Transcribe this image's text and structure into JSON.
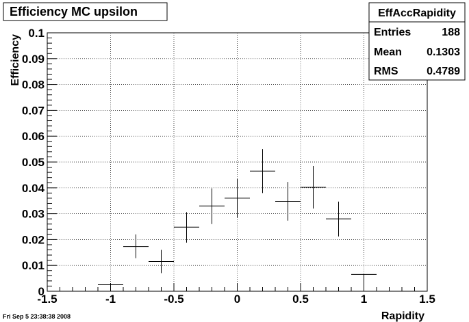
{
  "title_box": {
    "title": "Efficiency MC upsilon"
  },
  "stats_box": {
    "name": "EffAccRapidity",
    "rows": [
      {
        "label": "Entries",
        "value": "188"
      },
      {
        "label": "Mean",
        "value": "0.1303"
      },
      {
        "label": "RMS",
        "value": "0.4789"
      }
    ]
  },
  "footer": {
    "timestamp": "Fri Sep  5 23:38:38 2008"
  },
  "chart_data": {
    "type": "scatter",
    "title": "Efficiency MC upsilon",
    "xlabel": "Rapidity",
    "ylabel": "Efficiency",
    "xlim": [
      -1.5,
      1.5
    ],
    "ylim": [
      0,
      0.1
    ],
    "x_ticks": [
      -1.5,
      -1,
      -0.5,
      0,
      0.5,
      1,
      1.5
    ],
    "x_tick_labels": [
      "-1.5",
      "-1",
      "-0.5",
      "0",
      "0.5",
      "1",
      "1.5"
    ],
    "y_ticks": [
      0,
      0.01,
      0.02,
      0.03,
      0.04,
      0.05,
      0.06,
      0.07,
      0.08,
      0.09,
      0.1
    ],
    "y_tick_labels": [
      "0",
      "0.01",
      "0.02",
      "0.03",
      "0.04",
      "0.05",
      "0.06",
      "0.07",
      "0.08",
      "0.09",
      "0.1"
    ],
    "grid": true,
    "series": [
      {
        "x": [
          -1.0,
          -0.8,
          -0.6,
          -0.4,
          -0.2,
          0.0,
          0.2,
          0.4,
          0.6,
          0.8,
          1.0
        ],
        "y": [
          0.0025,
          0.0173,
          0.0115,
          0.0248,
          0.033,
          0.036,
          0.0465,
          0.0348,
          0.0402,
          0.028,
          0.0065
        ],
        "xerr": [
          0.1,
          0.1,
          0.1,
          0.1,
          0.1,
          0.1,
          0.1,
          0.1,
          0.1,
          0.1,
          0.1
        ],
        "yerr_low": [
          0.0025,
          0.0045,
          0.0045,
          0.006,
          0.007,
          0.0075,
          0.0085,
          0.0075,
          0.0082,
          0.0068,
          0.004
        ],
        "yerr_high": [
          0.0,
          0.0047,
          0.0045,
          0.0058,
          0.0068,
          0.0075,
          0.0085,
          0.0075,
          0.0082,
          0.0067,
          0.0
        ]
      }
    ]
  }
}
